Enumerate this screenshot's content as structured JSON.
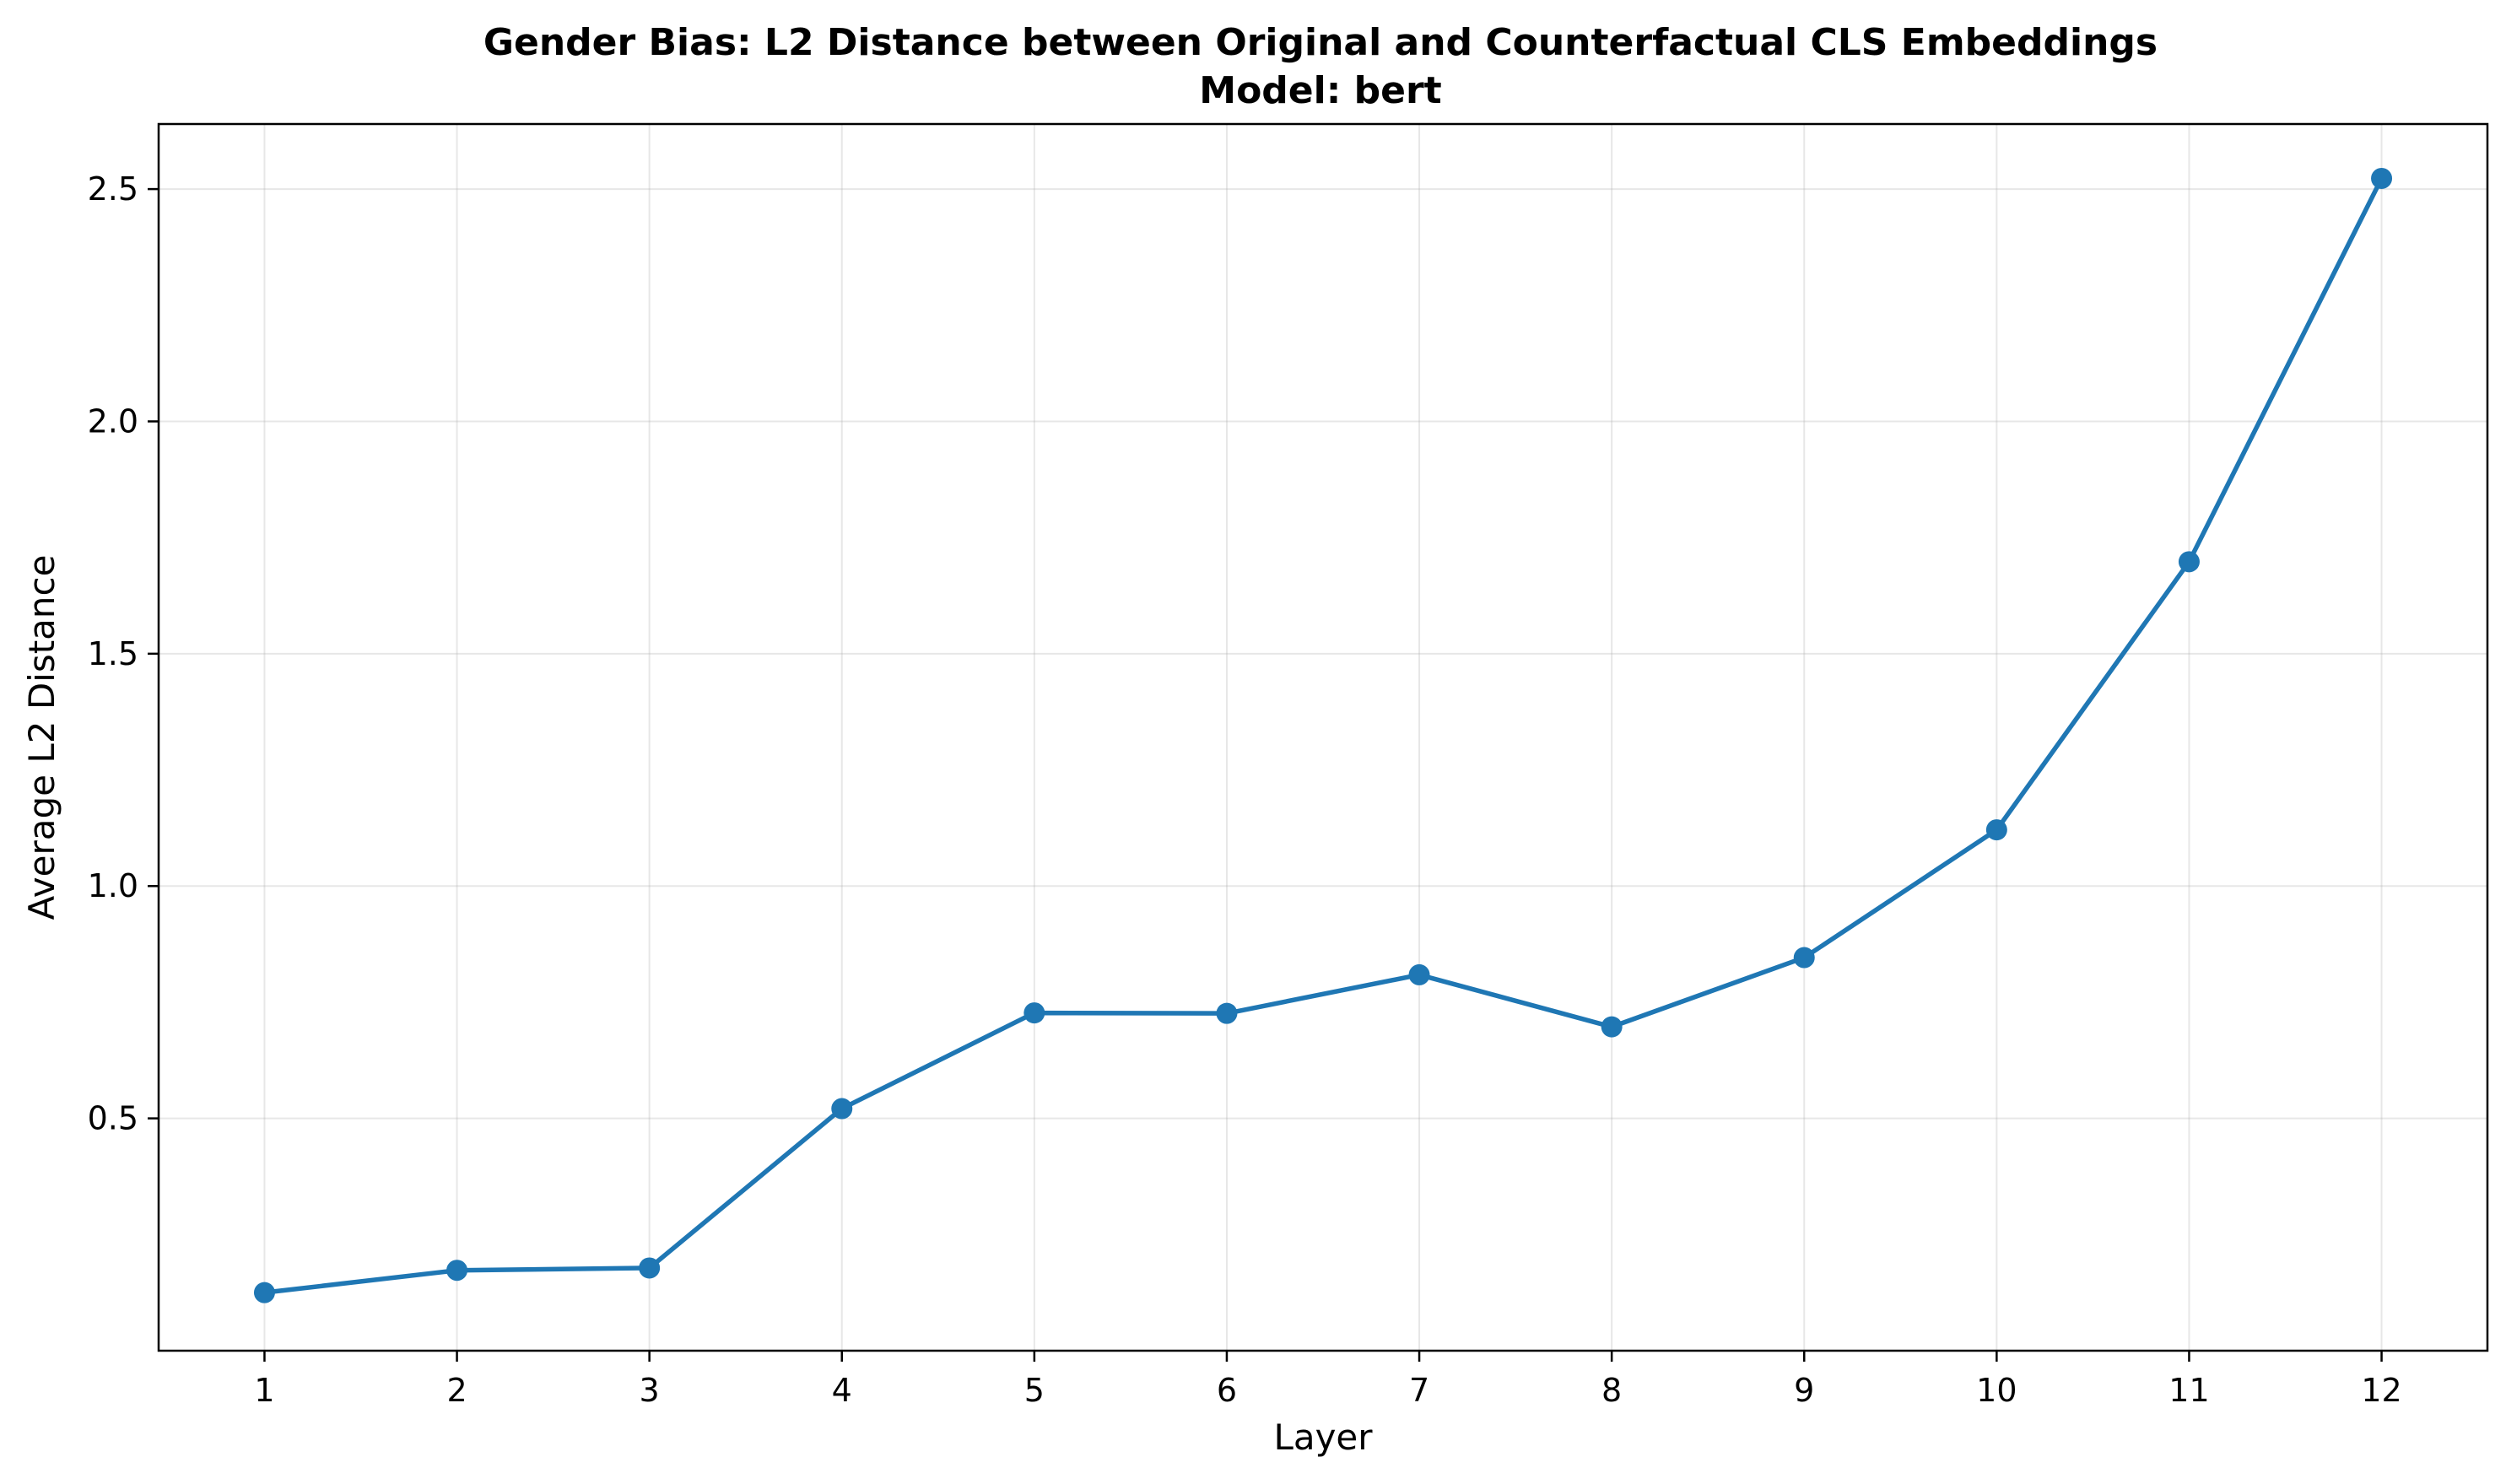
{
  "chart_data": {
    "type": "line",
    "title": "Gender Bias: L2 Distance between Original and Counterfactual CLS Embeddings",
    "subtitle": "Model: bert",
    "xlabel": "Layer",
    "ylabel": "Average L2 Distance",
    "x": [
      1,
      2,
      3,
      4,
      5,
      6,
      7,
      8,
      9,
      10,
      11,
      12
    ],
    "x_tick_labels": [
      "1",
      "2",
      "3",
      "4",
      "5",
      "6",
      "7",
      "8",
      "9",
      "10",
      "11",
      "12"
    ],
    "y_ticks": [
      0.5,
      1.0,
      1.5,
      2.0,
      2.5
    ],
    "y_tick_labels": [
      "0.5",
      "1.0",
      "1.5",
      "2.0",
      "2.5"
    ],
    "xlim": [
      0.45,
      12.55
    ],
    "ylim": [
      0.0,
      2.64
    ],
    "grid": true,
    "series": [
      {
        "color": "#1f77b4",
        "marker": "circle",
        "values": [
          0.125,
          0.173,
          0.178,
          0.521,
          0.727,
          0.726,
          0.809,
          0.697,
          0.846,
          1.121,
          1.698,
          2.523
        ]
      }
    ]
  }
}
